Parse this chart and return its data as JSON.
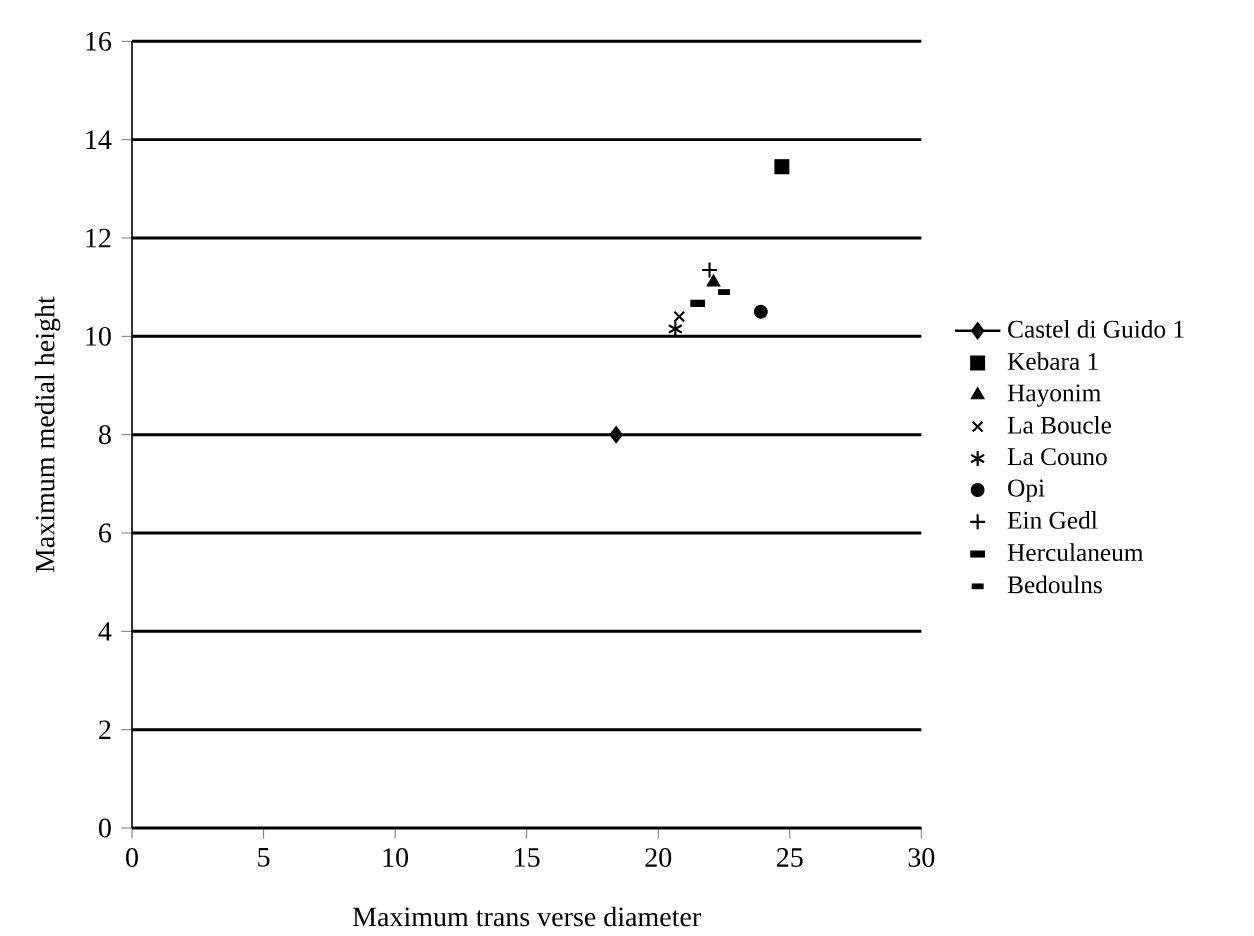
{
  "chart_data": {
    "type": "scatter",
    "xlabel": "Maximum trans verse diameter",
    "ylabel": "Maximum medial height",
    "xlim": [
      0,
      30
    ],
    "ylim": [
      0,
      16
    ],
    "xticks": [
      0,
      5,
      10,
      15,
      20,
      25,
      30
    ],
    "yticks": [
      0,
      2,
      4,
      6,
      8,
      10,
      12,
      14,
      16
    ],
    "grid": "y",
    "legend": "right",
    "series": [
      {
        "name": "Castel di Guido 1",
        "type": "line",
        "marker": "diamond",
        "color": "#000000",
        "x": [
          18.4
        ],
        "values": [
          8
        ]
      },
      {
        "name": "Kebara 1",
        "marker": "square",
        "color": "#000000",
        "x": [
          24.7
        ],
        "values": [
          13.45
        ]
      },
      {
        "name": "Hayonim",
        "marker": "triangle",
        "color": "#000000",
        "x": [
          22.1
        ],
        "values": [
          11.1
        ]
      },
      {
        "name": "La Boucle",
        "marker": "x",
        "color": "#000000",
        "x": [
          20.8
        ],
        "values": [
          10.4
        ]
      },
      {
        "name": "La Couno",
        "marker": "cross",
        "color": "#000000",
        "x": [
          20.65
        ],
        "values": [
          10.15
        ]
      },
      {
        "name": "Opi",
        "marker": "circle",
        "color": "#000000",
        "x": [
          23.9
        ],
        "values": [
          10.5
        ]
      },
      {
        "name": "Ein Gedl",
        "marker": "plus",
        "color": "#000000",
        "x": [
          21.95
        ],
        "values": [
          11.35
        ]
      },
      {
        "name": "Herculaneum",
        "color": "#000000",
        "x": [
          21.5
        ],
        "values": [
          10.67
        ]
      },
      {
        "name": "Bedoulns",
        "color": "#000000",
        "x": [
          22.5
        ],
        "values": [
          10.9
        ]
      }
    ]
  }
}
